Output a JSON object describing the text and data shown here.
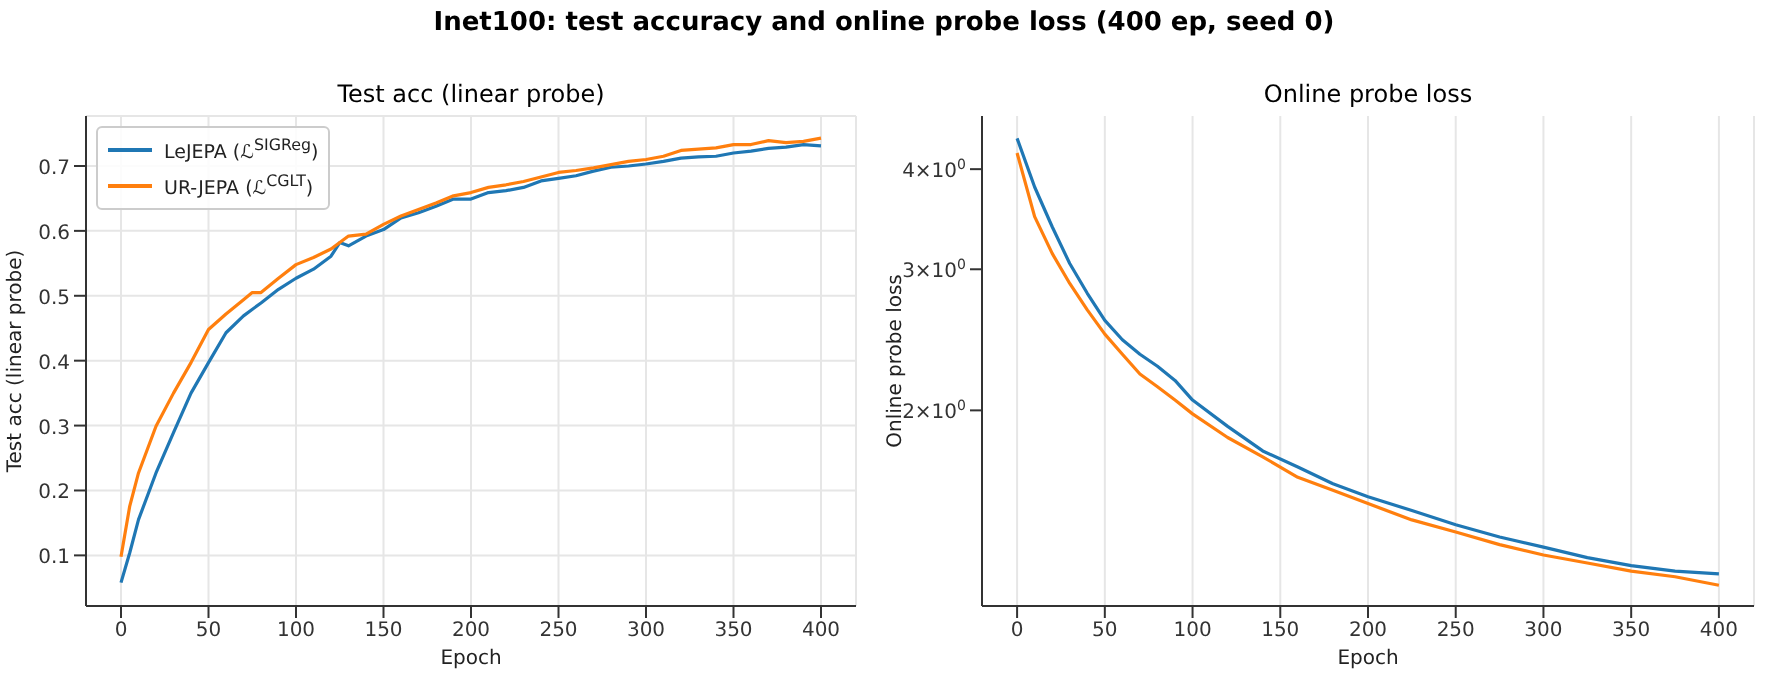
{
  "chart_data": [
    {
      "type": "line",
      "title": "Test acc (linear probe)",
      "xlabel": "Epoch",
      "ylabel": "Test acc (linear probe)",
      "annotations": [
        "Inet100: test accuracy and online probe loss (400 ep, seed 0)"
      ],
      "xlim": [
        -20,
        420
      ],
      "xticks": [
        0,
        50,
        100,
        150,
        200,
        250,
        300,
        350,
        400
      ],
      "ylim": [
        0.022,
        0.777
      ],
      "yticks": [
        0.1,
        0.2,
        0.3,
        0.4,
        0.5,
        0.6,
        0.7
      ],
      "grid": true,
      "legend": "top left",
      "line_style": "solid",
      "marker": "none",
      "series": [
        {
          "name": "LeJEPA (ℒ$^{SIGReg}$)",
          "color": "#1f77b4",
          "x": [
            0,
            5,
            10,
            20,
            30,
            40,
            50,
            60,
            70,
            80,
            90,
            100,
            110,
            120,
            125,
            130,
            140,
            150,
            160,
            170,
            180,
            190,
            200,
            210,
            220,
            230,
            240,
            250,
            260,
            270,
            280,
            290,
            300,
            310,
            320,
            330,
            340,
            350,
            360,
            370,
            380,
            390,
            400
          ],
          "values": [
            0.058,
            0.104,
            0.155,
            0.227,
            0.289,
            0.35,
            0.397,
            0.443,
            0.469,
            0.489,
            0.51,
            0.527,
            0.541,
            0.561,
            0.582,
            0.577,
            0.592,
            0.602,
            0.62,
            0.628,
            0.638,
            0.649,
            0.649,
            0.659,
            0.662,
            0.667,
            0.677,
            0.681,
            0.685,
            0.692,
            0.698,
            0.7,
            0.703,
            0.707,
            0.712,
            0.714,
            0.715,
            0.72,
            0.723,
            0.727,
            0.729,
            0.733,
            0.731
          ]
        },
        {
          "name": "UR-JEPA (ℒ$^{CGLT}$)",
          "color": "#ff7f0e",
          "x": [
            0,
            5,
            10,
            20,
            30,
            40,
            50,
            60,
            70,
            75,
            80,
            90,
            100,
            110,
            120,
            130,
            140,
            150,
            160,
            170,
            180,
            190,
            200,
            210,
            220,
            230,
            240,
            250,
            260,
            270,
            280,
            290,
            300,
            310,
            320,
            330,
            340,
            350,
            360,
            370,
            380,
            390,
            400
          ],
          "values": [
            0.098,
            0.176,
            0.227,
            0.299,
            0.35,
            0.397,
            0.448,
            0.472,
            0.494,
            0.505,
            0.505,
            0.527,
            0.548,
            0.559,
            0.572,
            0.592,
            0.595,
            0.61,
            0.623,
            0.633,
            0.643,
            0.654,
            0.659,
            0.667,
            0.671,
            0.676,
            0.683,
            0.69,
            0.693,
            0.697,
            0.702,
            0.707,
            0.71,
            0.715,
            0.724,
            0.726,
            0.728,
            0.733,
            0.733,
            0.739,
            0.736,
            0.738,
            0.743
          ]
        }
      ]
    },
    {
      "type": "line",
      "title": "Online probe loss",
      "xlabel": "Epoch",
      "ylabel": "Online probe loss",
      "xlim": [
        -20,
        420
      ],
      "xticks": [
        0,
        50,
        100,
        150,
        200,
        250,
        300,
        350,
        400
      ],
      "ylim": [
        1.14,
        4.66
      ],
      "yticks": [
        {
          "value": 2,
          "label": "2×10$^{0}$"
        },
        {
          "value": 3,
          "label": "3×10$^{0}$"
        },
        {
          "value": 4,
          "label": "4×10$^{0}$"
        }
      ],
      "log": "y",
      "grid": "x",
      "line_style": "solid",
      "marker": "none",
      "series": [
        {
          "color": "#1f77b4",
          "x": [
            0,
            10,
            20,
            30,
            40,
            50,
            60,
            70,
            80,
            90,
            100,
            120,
            140,
            160,
            180,
            200,
            225,
            250,
            275,
            300,
            325,
            350,
            375,
            400
          ],
          "values": [
            4.37,
            3.8,
            3.39,
            3.05,
            2.8,
            2.59,
            2.45,
            2.35,
            2.27,
            2.18,
            2.06,
            1.91,
            1.78,
            1.7,
            1.62,
            1.56,
            1.5,
            1.44,
            1.39,
            1.35,
            1.31,
            1.28,
            1.26,
            1.25
          ]
        },
        {
          "color": "#ff7f0e",
          "x": [
            0,
            10,
            20,
            30,
            40,
            50,
            60,
            70,
            80,
            90,
            100,
            120,
            140,
            160,
            180,
            200,
            225,
            250,
            275,
            300,
            325,
            350,
            375,
            400
          ],
          "values": [
            4.19,
            3.49,
            3.14,
            2.88,
            2.67,
            2.49,
            2.35,
            2.22,
            2.14,
            2.06,
            1.98,
            1.85,
            1.75,
            1.65,
            1.59,
            1.53,
            1.46,
            1.41,
            1.36,
            1.32,
            1.29,
            1.26,
            1.24,
            1.21
          ]
        }
      ]
    }
  ]
}
